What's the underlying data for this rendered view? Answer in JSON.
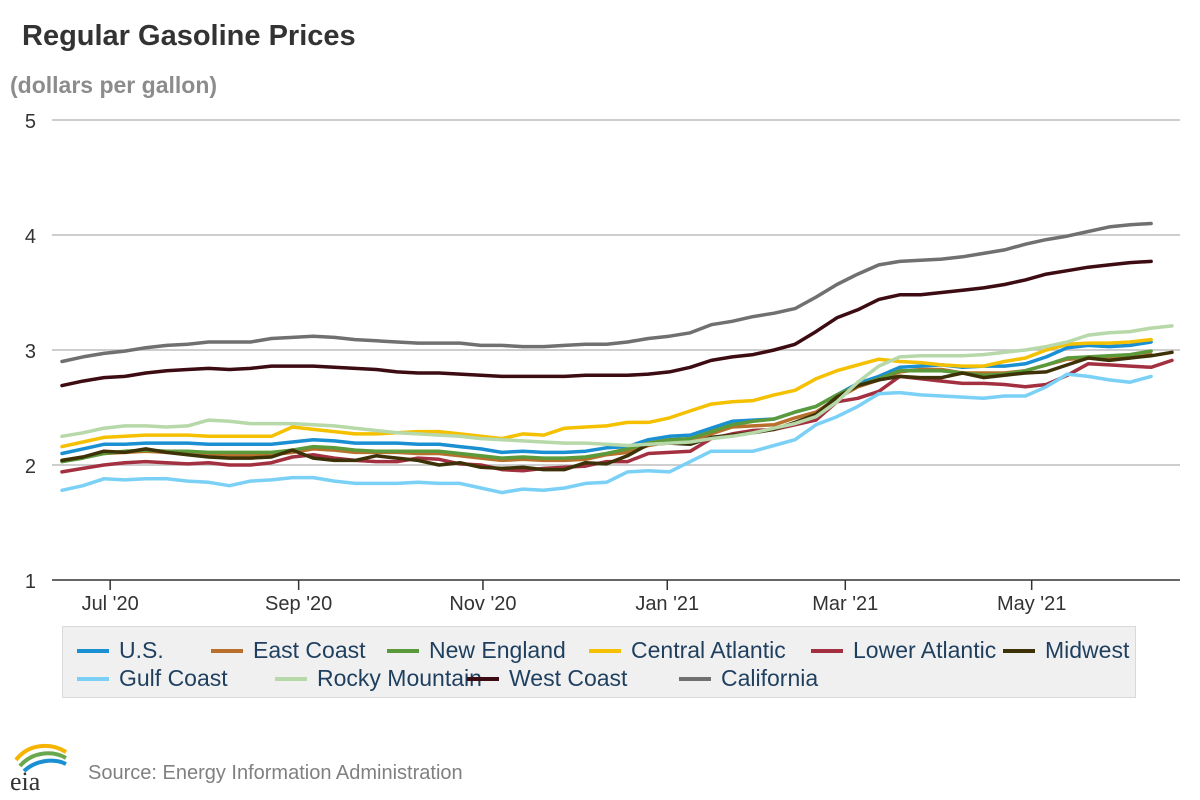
{
  "header": {
    "title": "Regular Gasoline Prices",
    "subtitle": "(dollars per gallon)"
  },
  "footer": {
    "source": "Source: Energy Information Administration",
    "logo_text": "eia"
  },
  "chart_data": {
    "type": "line",
    "title": "Regular Gasoline Prices",
    "ylabel": "(dollars per gallon)",
    "xlabel": "",
    "ylim": [
      1,
      5
    ],
    "yticks": [
      1,
      2,
      3,
      4,
      5
    ],
    "x_start": "2020-06-15",
    "x_interval_days": 7,
    "x_ticks": [
      {
        "label": "Jul '20",
        "week": 2.3
      },
      {
        "label": "Sep '20",
        "week": 11.3
      },
      {
        "label": "Nov '20",
        "week": 20.1
      },
      {
        "label": "Jan '21",
        "week": 28.9
      },
      {
        "label": "Mar '21",
        "week": 37.4
      },
      {
        "label": "May '21",
        "week": 46.3
      }
    ],
    "legend_position": "bottom",
    "series": [
      {
        "name": "U.S.",
        "color": "#1a8fd1",
        "values": [
          2.1,
          2.14,
          2.18,
          2.18,
          2.19,
          2.19,
          2.19,
          2.18,
          2.18,
          2.18,
          2.18,
          2.2,
          2.22,
          2.21,
          2.19,
          2.19,
          2.19,
          2.18,
          2.18,
          2.16,
          2.14,
          2.11,
          2.12,
          2.11,
          2.11,
          2.12,
          2.15,
          2.16,
          2.22,
          2.25,
          2.26,
          2.32,
          2.38,
          2.39,
          2.4,
          2.46,
          2.51,
          2.61,
          2.71,
          2.77,
          2.85,
          2.86,
          2.87,
          2.85,
          2.86,
          2.86,
          2.88,
          2.94,
          3.02,
          3.04,
          3.03,
          3.04,
          3.07
        ]
      },
      {
        "name": "East Coast",
        "color": "#b8702c",
        "values": [
          2.04,
          2.07,
          2.1,
          2.11,
          2.12,
          2.11,
          2.1,
          2.09,
          2.09,
          2.09,
          2.09,
          2.11,
          2.14,
          2.13,
          2.11,
          2.11,
          2.11,
          2.1,
          2.1,
          2.08,
          2.06,
          2.04,
          2.05,
          2.04,
          2.04,
          2.05,
          2.09,
          2.11,
          2.17,
          2.2,
          2.21,
          2.27,
          2.33,
          2.34,
          2.35,
          2.41,
          2.46,
          2.58,
          2.68,
          2.74,
          2.81,
          2.83,
          2.83,
          2.8,
          2.8,
          2.8,
          2.82,
          2.87,
          2.92,
          2.93,
          2.93,
          2.93,
          2.96
        ]
      },
      {
        "name": "New England",
        "color": "#5b9a3a",
        "values": [
          2.03,
          2.06,
          2.1,
          2.12,
          2.13,
          2.12,
          2.12,
          2.11,
          2.11,
          2.11,
          2.11,
          2.13,
          2.16,
          2.15,
          2.13,
          2.12,
          2.12,
          2.12,
          2.12,
          2.1,
          2.08,
          2.06,
          2.07,
          2.06,
          2.06,
          2.07,
          2.1,
          2.14,
          2.19,
          2.22,
          2.23,
          2.29,
          2.35,
          2.38,
          2.4,
          2.46,
          2.51,
          2.61,
          2.69,
          2.75,
          2.82,
          2.82,
          2.82,
          2.8,
          2.78,
          2.79,
          2.82,
          2.87,
          2.93,
          2.94,
          2.95,
          2.96,
          2.99
        ]
      },
      {
        "name": "Central Atlantic",
        "color": "#f4c000",
        "values": [
          2.16,
          2.2,
          2.24,
          2.25,
          2.26,
          2.26,
          2.26,
          2.25,
          2.25,
          2.25,
          2.25,
          2.33,
          2.31,
          2.29,
          2.27,
          2.27,
          2.28,
          2.29,
          2.29,
          2.27,
          2.25,
          2.23,
          2.27,
          2.26,
          2.32,
          2.33,
          2.34,
          2.37,
          2.37,
          2.41,
          2.47,
          2.53,
          2.55,
          2.56,
          2.61,
          2.65,
          2.75,
          2.82,
          2.87,
          2.92,
          2.9,
          2.89,
          2.87,
          2.86,
          2.86,
          2.9,
          2.93,
          3.0,
          3.05,
          3.06,
          3.06,
          3.07,
          3.09
        ]
      },
      {
        "name": "Lower Atlantic",
        "color": "#a33040",
        "values": [
          1.94,
          1.97,
          2.0,
          2.02,
          2.03,
          2.02,
          2.01,
          2.02,
          2.0,
          2.0,
          2.02,
          2.07,
          2.09,
          2.06,
          2.04,
          2.03,
          2.03,
          2.06,
          2.05,
          2.01,
          2.0,
          1.96,
          1.95,
          1.97,
          1.98,
          1.99,
          2.03,
          2.03,
          2.1,
          2.11,
          2.12,
          2.23,
          2.27,
          2.3,
          2.31,
          2.35,
          2.39,
          2.55,
          2.58,
          2.64,
          2.77,
          2.75,
          2.73,
          2.71,
          2.71,
          2.7,
          2.68,
          2.7,
          2.78,
          2.88,
          2.87,
          2.86,
          2.85,
          2.91
        ]
      },
      {
        "name": "Midwest",
        "color": "#3d3108",
        "values": [
          2.04,
          2.07,
          2.12,
          2.11,
          2.14,
          2.11,
          2.09,
          2.07,
          2.06,
          2.06,
          2.07,
          2.13,
          2.06,
          2.04,
          2.04,
          2.08,
          2.06,
          2.04,
          2.0,
          2.02,
          1.98,
          1.97,
          1.98,
          1.96,
          1.96,
          2.02,
          2.01,
          2.08,
          2.18,
          2.19,
          2.18,
          2.24,
          2.26,
          2.28,
          2.31,
          2.37,
          2.44,
          2.59,
          2.69,
          2.74,
          2.77,
          2.76,
          2.76,
          2.8,
          2.76,
          2.78,
          2.8,
          2.81,
          2.87,
          2.93,
          2.91,
          2.93,
          2.95,
          2.98
        ]
      },
      {
        "name": "Gulf Coast",
        "color": "#7ad0f5",
        "values": [
          1.78,
          1.82,
          1.88,
          1.87,
          1.88,
          1.88,
          1.86,
          1.85,
          1.82,
          1.86,
          1.87,
          1.89,
          1.89,
          1.86,
          1.84,
          1.84,
          1.84,
          1.85,
          1.84,
          1.84,
          1.8,
          1.76,
          1.79,
          1.78,
          1.8,
          1.84,
          1.85,
          1.94,
          1.95,
          1.94,
          2.03,
          2.12,
          2.12,
          2.12,
          2.17,
          2.22,
          2.35,
          2.42,
          2.51,
          2.62,
          2.63,
          2.61,
          2.6,
          2.59,
          2.58,
          2.6,
          2.6,
          2.68,
          2.79,
          2.77,
          2.74,
          2.72,
          2.77
        ]
      },
      {
        "name": "Rocky Mountain",
        "color": "#b7d8a8",
        "values": [
          2.25,
          2.28,
          2.32,
          2.34,
          2.34,
          2.33,
          2.34,
          2.39,
          2.38,
          2.36,
          2.36,
          2.36,
          2.35,
          2.34,
          2.32,
          2.3,
          2.28,
          2.27,
          2.26,
          2.25,
          2.23,
          2.22,
          2.21,
          2.2,
          2.19,
          2.19,
          2.18,
          2.17,
          2.18,
          2.19,
          2.2,
          2.23,
          2.25,
          2.28,
          2.32,
          2.36,
          2.42,
          2.55,
          2.72,
          2.86,
          2.94,
          2.95,
          2.95,
          2.95,
          2.96,
          2.98,
          3.0,
          3.03,
          3.07,
          3.13,
          3.15,
          3.16,
          3.19,
          3.21
        ]
      },
      {
        "name": "West Coast",
        "color": "#3d0b12",
        "values": [
          2.69,
          2.73,
          2.76,
          2.77,
          2.8,
          2.82,
          2.83,
          2.84,
          2.83,
          2.84,
          2.86,
          2.86,
          2.86,
          2.85,
          2.84,
          2.83,
          2.81,
          2.8,
          2.8,
          2.79,
          2.78,
          2.77,
          2.77,
          2.77,
          2.77,
          2.78,
          2.78,
          2.78,
          2.79,
          2.81,
          2.85,
          2.91,
          2.94,
          2.96,
          3.0,
          3.05,
          3.16,
          3.28,
          3.35,
          3.44,
          3.48,
          3.48,
          3.5,
          3.52,
          3.54,
          3.57,
          3.61,
          3.66,
          3.69,
          3.72,
          3.74,
          3.76,
          3.77
        ]
      },
      {
        "name": "California",
        "color": "#707070",
        "values": [
          2.9,
          2.94,
          2.97,
          2.99,
          3.02,
          3.04,
          3.05,
          3.07,
          3.07,
          3.07,
          3.1,
          3.11,
          3.12,
          3.11,
          3.09,
          3.08,
          3.07,
          3.06,
          3.06,
          3.06,
          3.04,
          3.04,
          3.03,
          3.03,
          3.04,
          3.05,
          3.05,
          3.07,
          3.1,
          3.12,
          3.15,
          3.22,
          3.25,
          3.29,
          3.32,
          3.36,
          3.46,
          3.57,
          3.66,
          3.74,
          3.77,
          3.78,
          3.79,
          3.81,
          3.84,
          3.87,
          3.92,
          3.96,
          3.99,
          4.03,
          4.07,
          4.09,
          4.1
        ]
      }
    ]
  }
}
